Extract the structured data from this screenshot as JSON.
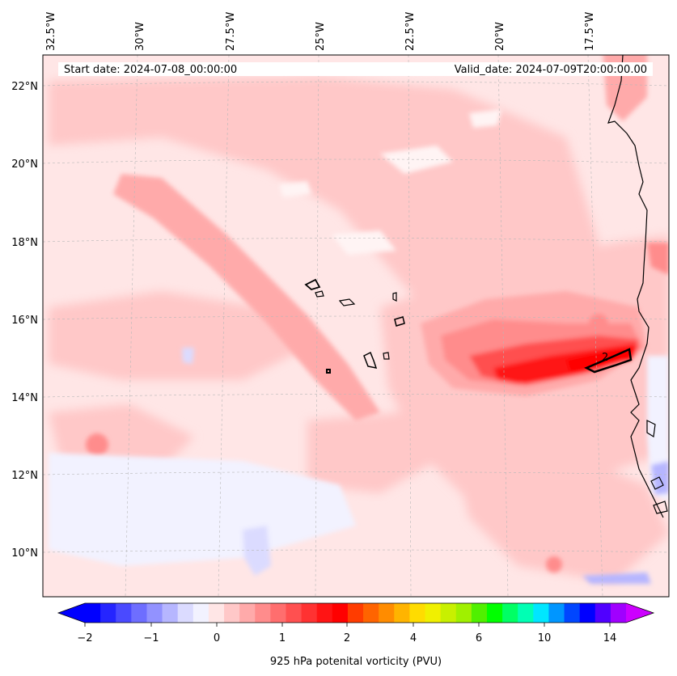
{
  "header": {
    "start_date": "Start date: 2024-07-08_00:00:00",
    "valid_date": "Valid_date: 2024-07-09T20:00:00.00"
  },
  "lon_labels": [
    "32.5°W",
    "30°W",
    "27.5°W",
    "25°W",
    "22.5°W",
    "20°W",
    "17.5°W"
  ],
  "lat_labels": [
    "22°N",
    "20°N",
    "18°N",
    "16°N",
    "14°N",
    "12°N",
    "10°N"
  ],
  "contour_label": "2",
  "colorbar": {
    "tick_labels": [
      "−2",
      "−1",
      "0",
      "1",
      "2",
      "4",
      "6",
      "10",
      "14"
    ],
    "caption": "925 hPa potenital vorticity (PVU)",
    "colors": [
      "#0000ff",
      "#2525ff",
      "#4a4aff",
      "#6e6eff",
      "#9292ff",
      "#b6b6ff",
      "#dbdbff",
      "#f2f2ff",
      "#ffe6e6",
      "#ffc8c8",
      "#ffaaaa",
      "#ff8c8c",
      "#ff6e6e",
      "#ff5050",
      "#ff3232",
      "#ff1414",
      "#ff0000",
      "#ff3c00",
      "#ff6400",
      "#ff8c00",
      "#ffb400",
      "#ffdc00",
      "#f0f000",
      "#c8f000",
      "#a0f000",
      "#50f000",
      "#00ff00",
      "#00ff64",
      "#00ffb4",
      "#00e6ff",
      "#0096ff",
      "#0046ff",
      "#0000ff",
      "#5000ff",
      "#a000ff"
    ],
    "under_color": "#0000ff",
    "over_color": "#cc00ff"
  }
}
